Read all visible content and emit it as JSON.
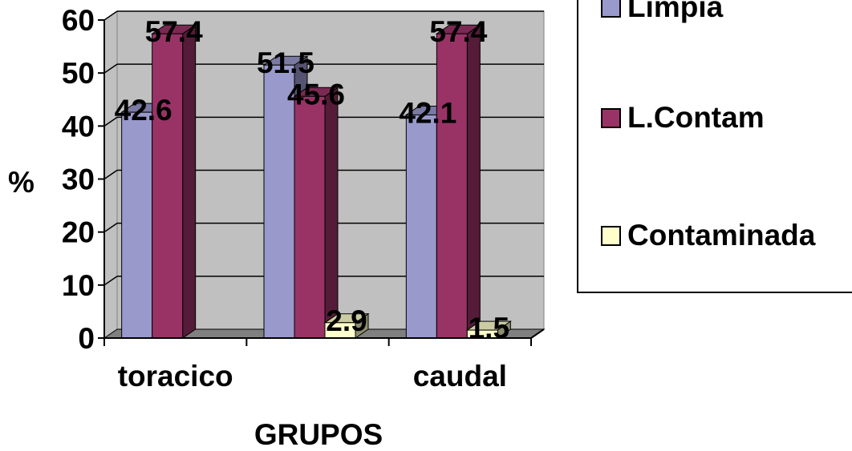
{
  "chart_data": {
    "type": "bar",
    "title": "",
    "xlabel": "GRUPOS",
    "ylabel": "%",
    "ylim": [
      0,
      60
    ],
    "yticks": [
      "0",
      "10",
      "20",
      "30",
      "40",
      "50",
      "60"
    ],
    "categories": [
      "toracico",
      "",
      "caudal"
    ],
    "series": [
      {
        "name": "Limpia",
        "color": "#9999cc",
        "values": [
          42.6,
          51.5,
          42.1
        ],
        "labels": [
          "42.6",
          "51.5",
          "42.1"
        ]
      },
      {
        "name": "L.Contam",
        "color": "#993366",
        "values": [
          57.4,
          45.6,
          57.4
        ],
        "labels": [
          "57.4",
          "45.6",
          "57.4"
        ]
      },
      {
        "name": "Contaminada",
        "color": "#ffffcc",
        "values": [
          null,
          2.9,
          1.5
        ],
        "labels": [
          "",
          "2.9",
          "1.5"
        ]
      }
    ],
    "grid": true,
    "style": "3d-clustered-column",
    "legend_position": "right"
  }
}
